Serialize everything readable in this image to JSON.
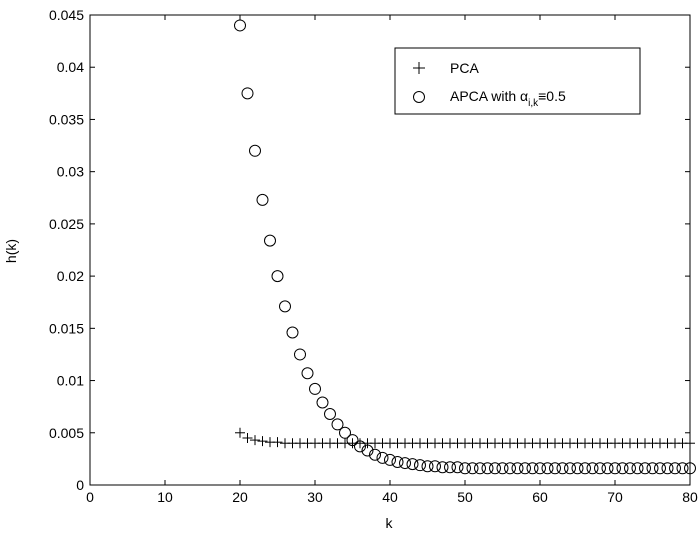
{
  "chart_data": {
    "type": "scatter",
    "xlabel": "k",
    "ylabel": "h(k)",
    "xlim": [
      0,
      80
    ],
    "ylim": [
      0,
      0.045
    ],
    "xticks": [
      0,
      10,
      20,
      30,
      40,
      50,
      60,
      70,
      80
    ],
    "yticks": [
      0,
      0.005,
      0.01,
      0.015,
      0.02,
      0.025,
      0.03,
      0.035,
      0.04,
      0.045
    ],
    "ytick_labels": [
      "0",
      "0.005",
      "0.01",
      "0.015",
      "0.02",
      "0.025",
      "0.03",
      "0.035",
      "0.04",
      "0.045"
    ],
    "grid": false,
    "legend_position": "top-right",
    "series": [
      {
        "name": "PCA",
        "marker": "plus",
        "x": [
          20,
          21,
          22,
          23,
          24,
          25,
          26,
          27,
          28,
          29,
          30,
          31,
          32,
          33,
          34,
          35,
          36,
          37,
          38,
          39,
          40,
          41,
          42,
          43,
          44,
          45,
          46,
          47,
          48,
          49,
          50,
          51,
          52,
          53,
          54,
          55,
          56,
          57,
          58,
          59,
          60,
          61,
          62,
          63,
          64,
          65,
          66,
          67,
          68,
          69,
          70,
          71,
          72,
          73,
          74,
          75,
          76,
          77,
          78,
          79,
          80
        ],
        "y": [
          0.005,
          0.0045,
          0.0043,
          0.0042,
          0.0041,
          0.0041,
          0.004,
          0.004,
          0.004,
          0.004,
          0.004,
          0.004,
          0.004,
          0.004,
          0.004,
          0.004,
          0.004,
          0.004,
          0.004,
          0.004,
          0.004,
          0.004,
          0.004,
          0.004,
          0.004,
          0.004,
          0.004,
          0.004,
          0.004,
          0.004,
          0.004,
          0.004,
          0.004,
          0.004,
          0.004,
          0.004,
          0.004,
          0.004,
          0.004,
          0.004,
          0.004,
          0.004,
          0.004,
          0.004,
          0.004,
          0.004,
          0.004,
          0.004,
          0.004,
          0.004,
          0.004,
          0.004,
          0.004,
          0.004,
          0.004,
          0.004,
          0.004,
          0.004,
          0.004,
          0.004,
          0.004
        ]
      },
      {
        "name": "APCA with α",
        "name_subscript": "i,k",
        "name_suffix": "≡0.5",
        "marker": "circle",
        "x": [
          20,
          21,
          22,
          23,
          24,
          25,
          26,
          27,
          28,
          29,
          30,
          31,
          32,
          33,
          34,
          35,
          36,
          37,
          38,
          39,
          40,
          41,
          42,
          43,
          44,
          45,
          46,
          47,
          48,
          49,
          50,
          51,
          52,
          53,
          54,
          55,
          56,
          57,
          58,
          59,
          60,
          61,
          62,
          63,
          64,
          65,
          66,
          67,
          68,
          69,
          70,
          71,
          72,
          73,
          74,
          75,
          76,
          77,
          78,
          79,
          80
        ],
        "y": [
          0.044,
          0.0375,
          0.032,
          0.0273,
          0.0234,
          0.02,
          0.0171,
          0.0146,
          0.0125,
          0.0107,
          0.0092,
          0.0079,
          0.0068,
          0.0058,
          0.005,
          0.0043,
          0.0037,
          0.0033,
          0.0029,
          0.0026,
          0.0024,
          0.0022,
          0.0021,
          0.002,
          0.0019,
          0.0018,
          0.0018,
          0.0017,
          0.0017,
          0.0017,
          0.0016,
          0.0016,
          0.0016,
          0.0016,
          0.0016,
          0.0016,
          0.0016,
          0.0016,
          0.0016,
          0.0016,
          0.0016,
          0.0016,
          0.0016,
          0.0016,
          0.0016,
          0.0016,
          0.0016,
          0.0016,
          0.0016,
          0.0016,
          0.0016,
          0.0016,
          0.0016,
          0.0016,
          0.0016,
          0.0016,
          0.0016,
          0.0016,
          0.0016,
          0.0016,
          0.0016
        ]
      }
    ]
  }
}
